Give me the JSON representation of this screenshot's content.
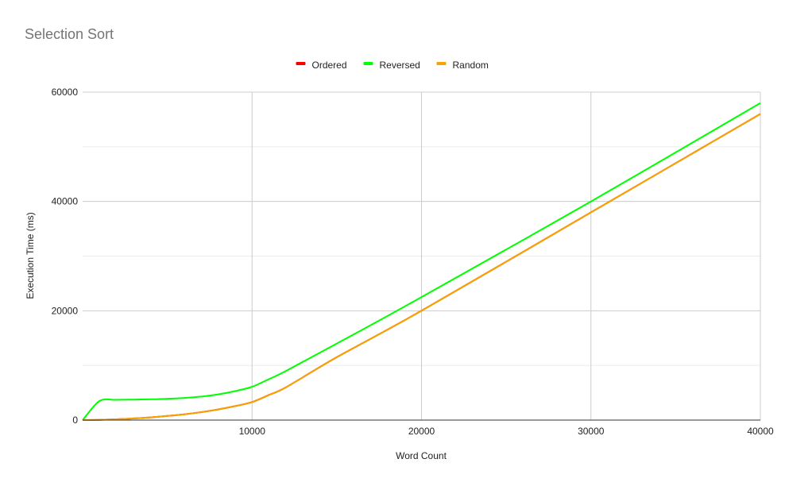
{
  "chart_data": {
    "type": "line",
    "title": "Selection Sort",
    "xlabel": "Word Count",
    "ylabel": "Execution Time (ms)",
    "xlim": [
      0,
      40000
    ],
    "ylim": [
      0,
      60000
    ],
    "x_ticks": [
      10000,
      20000,
      30000,
      40000
    ],
    "y_ticks": [
      0,
      20000,
      40000,
      60000
    ],
    "grid": true,
    "legend_position": "top",
    "series": [
      {
        "name": "Ordered",
        "color": "#ff0000",
        "points": [
          [
            0,
            0
          ],
          [
            1000,
            50
          ],
          [
            2000,
            150
          ],
          [
            3000,
            300
          ],
          [
            4000,
            500
          ],
          [
            5000,
            750
          ],
          [
            6000,
            1050
          ],
          [
            7000,
            1450
          ],
          [
            8000,
            1950
          ],
          [
            9000,
            2550
          ],
          [
            10000,
            3300
          ],
          [
            11000,
            4600
          ],
          [
            12000,
            6000
          ],
          [
            15000,
            11500
          ],
          [
            20000,
            20000
          ],
          [
            30000,
            38000
          ],
          [
            40000,
            56000
          ]
        ]
      },
      {
        "name": "Reversed",
        "color": "#00ff00",
        "points": [
          [
            0,
            0
          ],
          [
            1000,
            3500
          ],
          [
            2000,
            3700
          ],
          [
            3000,
            3750
          ],
          [
            4000,
            3800
          ],
          [
            5000,
            3900
          ],
          [
            6000,
            4050
          ],
          [
            7000,
            4300
          ],
          [
            8000,
            4700
          ],
          [
            9000,
            5300
          ],
          [
            10000,
            6100
          ],
          [
            11000,
            7500
          ],
          [
            12000,
            9000
          ],
          [
            15000,
            14000
          ],
          [
            20000,
            22500
          ],
          [
            30000,
            40000
          ],
          [
            40000,
            58000
          ]
        ]
      },
      {
        "name": "Random",
        "color": "#f4a300",
        "points": [
          [
            0,
            0
          ],
          [
            1000,
            50
          ],
          [
            2000,
            150
          ],
          [
            3000,
            300
          ],
          [
            4000,
            500
          ],
          [
            5000,
            750
          ],
          [
            6000,
            1050
          ],
          [
            7000,
            1450
          ],
          [
            8000,
            1950
          ],
          [
            9000,
            2550
          ],
          [
            10000,
            3300
          ],
          [
            11000,
            4600
          ],
          [
            12000,
            6000
          ],
          [
            15000,
            11500
          ],
          [
            20000,
            20000
          ],
          [
            30000,
            38000
          ],
          [
            40000,
            56000
          ]
        ]
      }
    ]
  }
}
